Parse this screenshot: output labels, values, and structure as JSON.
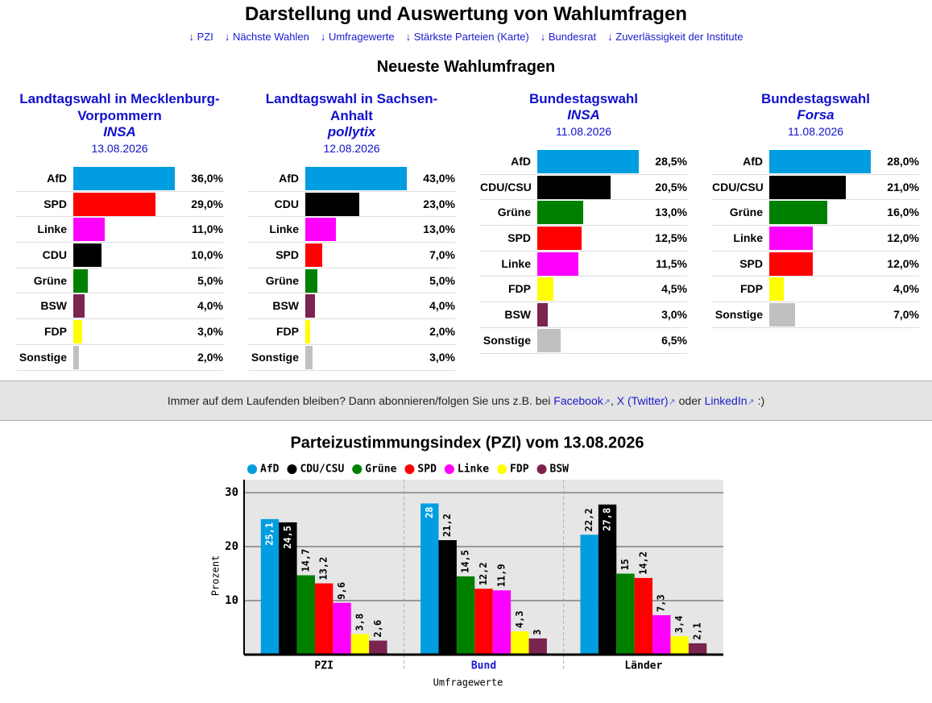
{
  "header": {
    "title": "Darstellung und Auswertung von Wahlumfragen",
    "nav": [
      "↓ PZI",
      "↓ Nächste Wahlen",
      "↓ Umfragewerte",
      "↓ Stärkste Parteien (Karte)",
      "↓ Bundesrat",
      "↓ Zuverlässigkeit der Institute"
    ]
  },
  "section_title": "Neueste Wahlumfragen",
  "chart_data": [
    {
      "type": "barh",
      "title": "Landtagswahl in Mecklenburg-Vorpommern",
      "subtitle": "INSA",
      "date": "13.08.2026",
      "categories": [
        "AfD",
        "SPD",
        "Linke",
        "CDU",
        "Grüne",
        "BSW",
        "FDP",
        "Sonstige"
      ],
      "values": [
        36.0,
        29.0,
        11.0,
        10.0,
        5.0,
        4.0,
        3.0,
        2.0
      ],
      "value_labels": [
        "36,0%",
        "29,0%",
        "11,0%",
        "10,0%",
        "5,0%",
        "4,0%",
        "3,0%",
        "2,0%"
      ],
      "colors": [
        "#009ee0",
        "#ff0000",
        "#ff00ff",
        "#000000",
        "#008000",
        "#7b2450",
        "#ffff00",
        "#c0c0c0"
      ]
    },
    {
      "type": "barh",
      "title": "Landtagswahl in Sachsen-Anhalt",
      "subtitle": "pollytix",
      "date": "12.08.2026",
      "categories": [
        "AfD",
        "CDU",
        "Linke",
        "SPD",
        "Grüne",
        "BSW",
        "FDP",
        "Sonstige"
      ],
      "values": [
        43.0,
        23.0,
        13.0,
        7.0,
        5.0,
        4.0,
        2.0,
        3.0
      ],
      "value_labels": [
        "43,0%",
        "23,0%",
        "13,0%",
        "7,0%",
        "5,0%",
        "4,0%",
        "2,0%",
        "3,0%"
      ],
      "colors": [
        "#009ee0",
        "#000000",
        "#ff00ff",
        "#ff0000",
        "#008000",
        "#7b2450",
        "#ffff00",
        "#c0c0c0"
      ]
    },
    {
      "type": "barh",
      "title": "Bundestagswahl",
      "subtitle": "INSA",
      "date": "11.08.2026",
      "categories": [
        "AfD",
        "CDU/CSU",
        "Grüne",
        "SPD",
        "Linke",
        "FDP",
        "BSW",
        "Sonstige"
      ],
      "values": [
        28.5,
        20.5,
        13.0,
        12.5,
        11.5,
        4.5,
        3.0,
        6.5
      ],
      "value_labels": [
        "28,5%",
        "20,5%",
        "13,0%",
        "12,5%",
        "11,5%",
        "4,5%",
        "3,0%",
        "6,5%"
      ],
      "colors": [
        "#009ee0",
        "#000000",
        "#008000",
        "#ff0000",
        "#ff00ff",
        "#ffff00",
        "#7b2450",
        "#c0c0c0"
      ]
    },
    {
      "type": "barh",
      "title": "Bundestagswahl",
      "subtitle": "Forsa",
      "date": "11.08.2026",
      "categories": [
        "AfD",
        "CDU/CSU",
        "Grüne",
        "Linke",
        "SPD",
        "FDP",
        "Sonstige"
      ],
      "values": [
        28.0,
        21.0,
        16.0,
        12.0,
        12.0,
        4.0,
        7.0
      ],
      "value_labels": [
        "28,0%",
        "21,0%",
        "16,0%",
        "12,0%",
        "12,0%",
        "4,0%",
        "7,0%"
      ],
      "colors": [
        "#009ee0",
        "#000000",
        "#008000",
        "#ff00ff",
        "#ff0000",
        "#ffff00",
        "#c0c0c0"
      ]
    },
    {
      "type": "bar",
      "title": "Parteizustimmungsindex (PZI) vom 13.08.2026",
      "categories": [
        "PZI",
        "Bund",
        "Länder"
      ],
      "category_colors": [
        "#000000",
        "#1a1acc",
        "#000000"
      ],
      "xlabel": "Umfragewerte",
      "ylabel": "Prozent",
      "ylim": [
        0,
        32.4
      ],
      "yticks": [
        10,
        20,
        30
      ],
      "grid": true,
      "legend": "top",
      "series": [
        {
          "name": "AfD",
          "color": "#009ee0",
          "values": [
            25.1,
            28,
            22.2
          ],
          "value_labels": [
            "25,1",
            "28",
            "22,2"
          ]
        },
        {
          "name": "CDU/CSU",
          "color": "#000000",
          "values": [
            24.5,
            21.2,
            27.8
          ],
          "value_labels": [
            "24,5",
            "21,2",
            "27,8"
          ]
        },
        {
          "name": "Grüne",
          "color": "#008000",
          "values": [
            14.7,
            14.5,
            15
          ],
          "value_labels": [
            "14,7",
            "14,5",
            "15"
          ]
        },
        {
          "name": "SPD",
          "color": "#ff0000",
          "values": [
            13.2,
            12.2,
            14.2
          ],
          "value_labels": [
            "13,2",
            "12,2",
            "14,2"
          ]
        },
        {
          "name": "Linke",
          "color": "#ff00ff",
          "values": [
            9.6,
            11.9,
            7.3
          ],
          "value_labels": [
            "9,6",
            "11,9",
            "7,3"
          ]
        },
        {
          "name": "FDP",
          "color": "#ffff00",
          "values": [
            3.8,
            4.3,
            3.4
          ],
          "value_labels": [
            "3,8",
            "4,3",
            "3,4"
          ]
        },
        {
          "name": "BSW",
          "color": "#7b2450",
          "values": [
            2.6,
            3,
            2.1
          ],
          "value_labels": [
            "2,6",
            "3",
            "2,1"
          ]
        }
      ]
    }
  ],
  "banner": {
    "text_before": "Immer auf dem Laufenden bleiben? Dann abonnieren/folgen Sie uns z.B. bei",
    "links": [
      "Facebook",
      "X (Twitter)",
      "LinkedIn"
    ],
    "link_icon": "↗",
    "separator": ",",
    "conjunction": "oder",
    "text_after": ":)"
  }
}
